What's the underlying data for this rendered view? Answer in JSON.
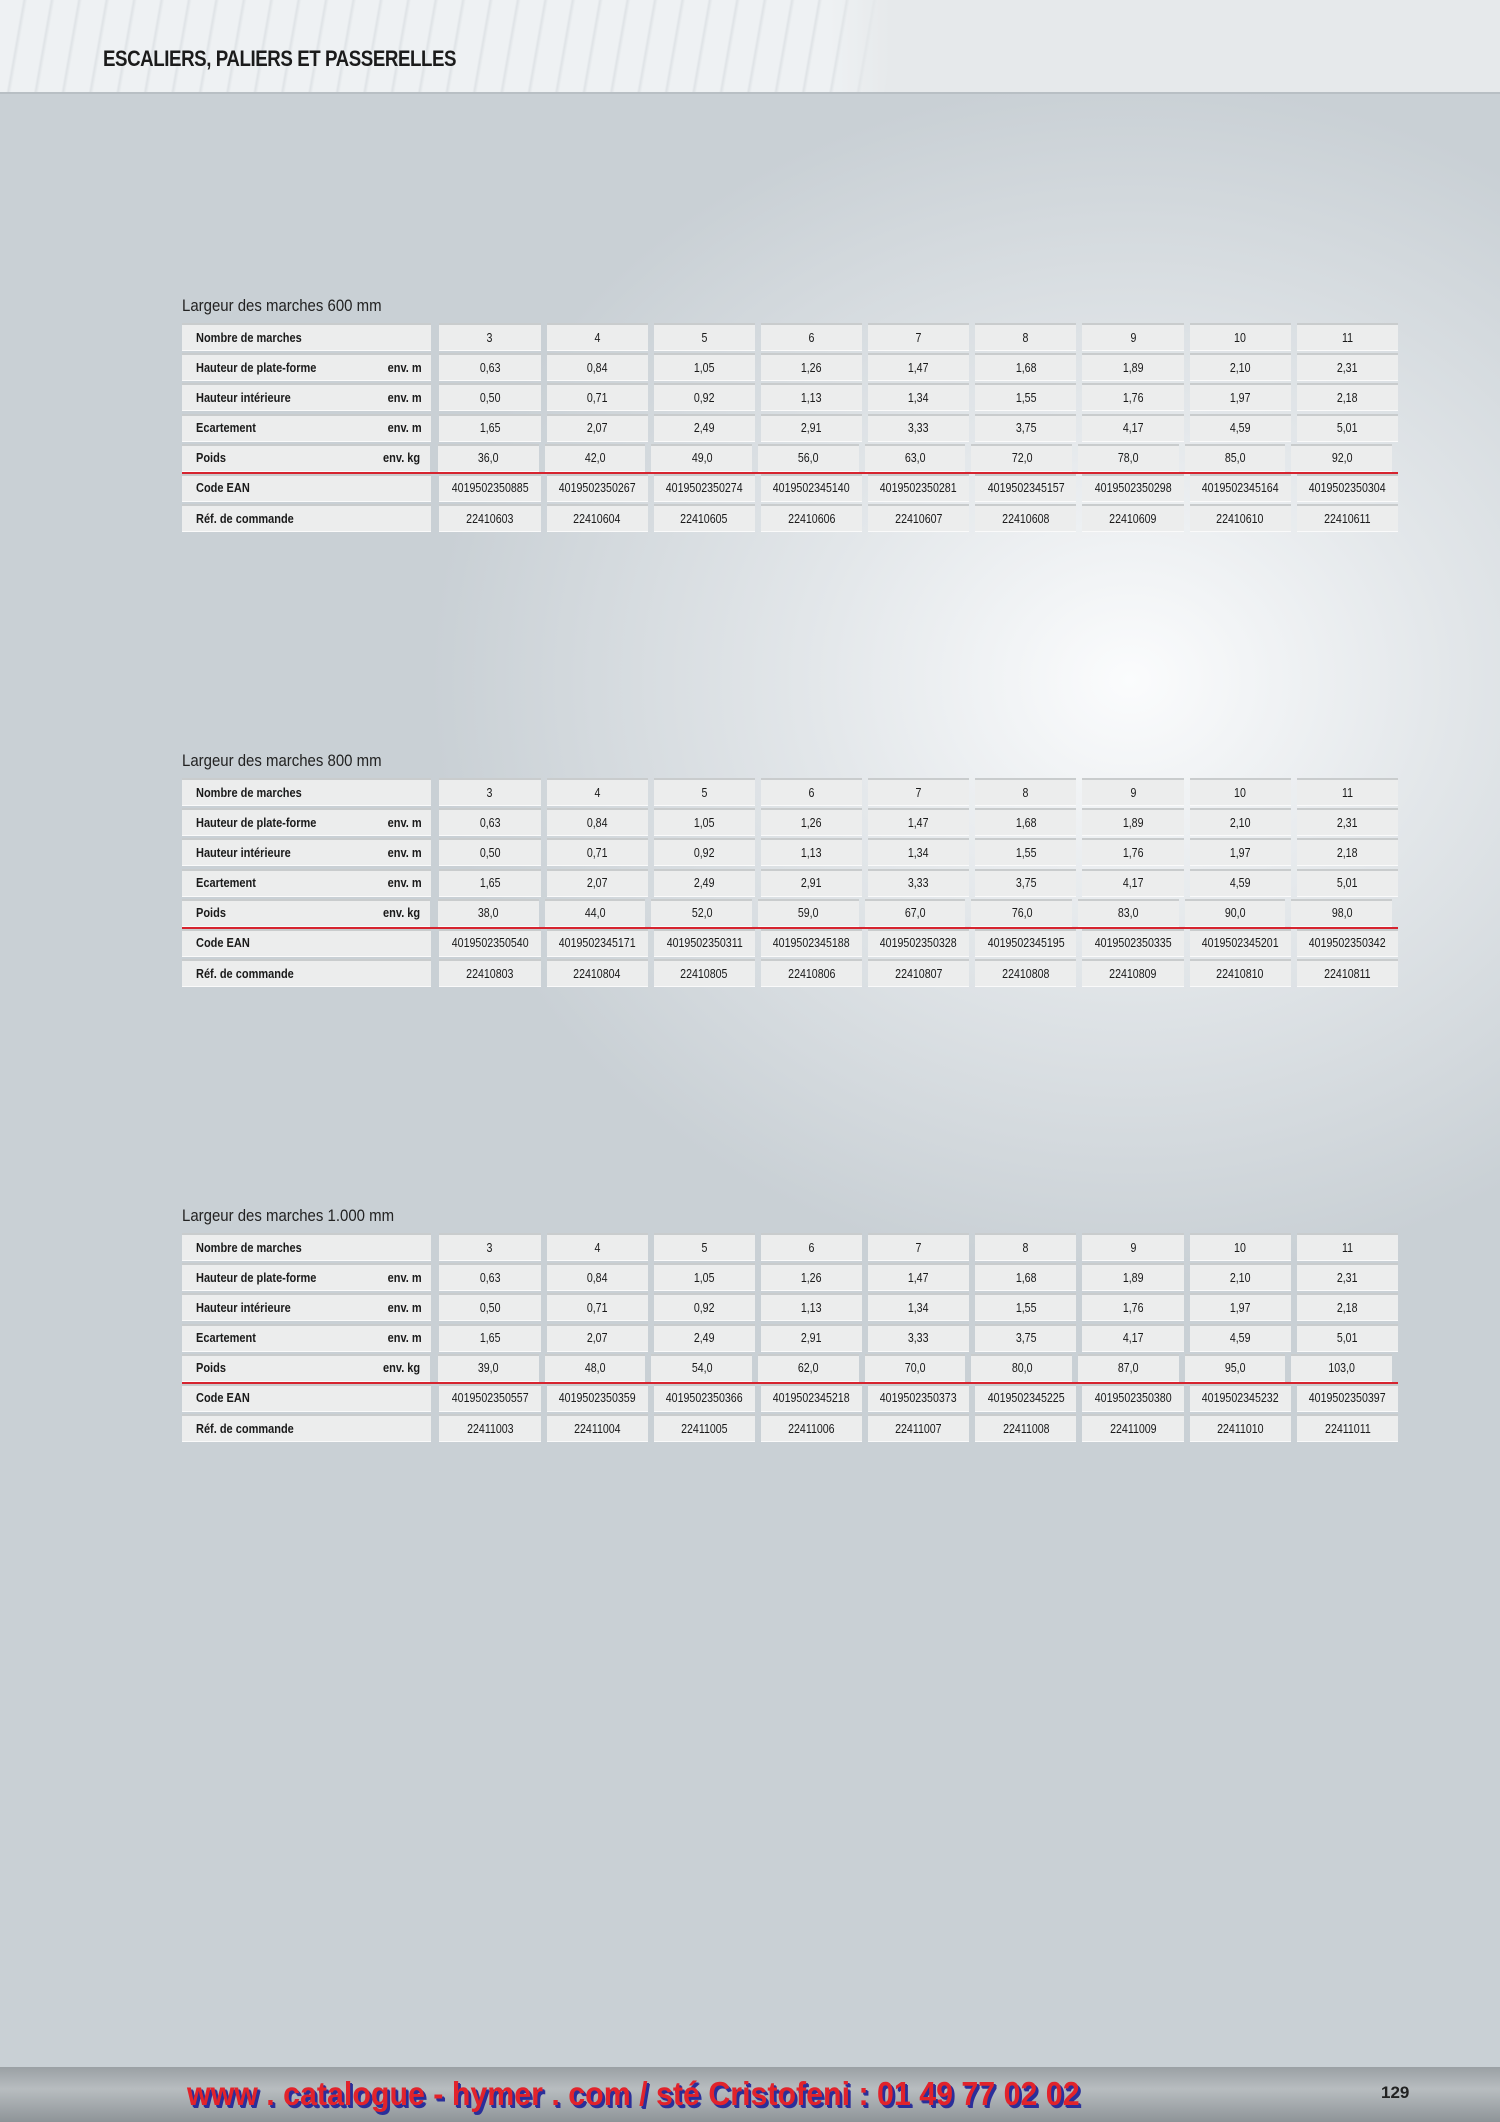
{
  "header": {
    "title": "ESCALIERS, PALIERS ET PASSERELLES"
  },
  "row_labels": [
    {
      "label": "Nombre de marches",
      "unit": ""
    },
    {
      "label": "Hauteur de plate-forme",
      "unit": "env. m"
    },
    {
      "label": "Hauteur intérieure",
      "unit": "env. m"
    },
    {
      "label": "Ecartement",
      "unit": "env. m"
    },
    {
      "label": "Poids",
      "unit": "env. kg"
    },
    {
      "label": "Code EAN",
      "unit": ""
    },
    {
      "label": "Réf. de commande",
      "unit": ""
    }
  ],
  "tables": [
    {
      "title": "Largeur des marches 600 mm",
      "rows": [
        [
          "3",
          "4",
          "5",
          "6",
          "7",
          "8",
          "9",
          "10",
          "11"
        ],
        [
          "0,63",
          "0,84",
          "1,05",
          "1,26",
          "1,47",
          "1,68",
          "1,89",
          "2,10",
          "2,31"
        ],
        [
          "0,50",
          "0,71",
          "0,92",
          "1,13",
          "1,34",
          "1,55",
          "1,76",
          "1,97",
          "2,18"
        ],
        [
          "1,65",
          "2,07",
          "2,49",
          "2,91",
          "3,33",
          "3,75",
          "4,17",
          "4,59",
          "5,01"
        ],
        [
          "36,0",
          "42,0",
          "49,0",
          "56,0",
          "63,0",
          "72,0",
          "78,0",
          "85,0",
          "92,0"
        ],
        [
          "4019502350885",
          "4019502350267",
          "4019502350274",
          "4019502345140",
          "4019502350281",
          "4019502345157",
          "4019502350298",
          "4019502345164",
          "4019502350304"
        ],
        [
          "22410603",
          "22410604",
          "22410605",
          "22410606",
          "22410607",
          "22410608",
          "22410609",
          "22410610",
          "22410611"
        ]
      ]
    },
    {
      "title": "Largeur des marches 800 mm",
      "rows": [
        [
          "3",
          "4",
          "5",
          "6",
          "7",
          "8",
          "9",
          "10",
          "11"
        ],
        [
          "0,63",
          "0,84",
          "1,05",
          "1,26",
          "1,47",
          "1,68",
          "1,89",
          "2,10",
          "2,31"
        ],
        [
          "0,50",
          "0,71",
          "0,92",
          "1,13",
          "1,34",
          "1,55",
          "1,76",
          "1,97",
          "2,18"
        ],
        [
          "1,65",
          "2,07",
          "2,49",
          "2,91",
          "3,33",
          "3,75",
          "4,17",
          "4,59",
          "5,01"
        ],
        [
          "38,0",
          "44,0",
          "52,0",
          "59,0",
          "67,0",
          "76,0",
          "83,0",
          "90,0",
          "98,0"
        ],
        [
          "4019502350540",
          "4019502345171",
          "4019502350311",
          "4019502345188",
          "4019502350328",
          "4019502345195",
          "4019502350335",
          "4019502345201",
          "4019502350342"
        ],
        [
          "22410803",
          "22410804",
          "22410805",
          "22410806",
          "22410807",
          "22410808",
          "22410809",
          "22410810",
          "22410811"
        ]
      ]
    },
    {
      "title": "Largeur des marches 1.000 mm",
      "rows": [
        [
          "3",
          "4",
          "5",
          "6",
          "7",
          "8",
          "9",
          "10",
          "11"
        ],
        [
          "0,63",
          "0,84",
          "1,05",
          "1,26",
          "1,47",
          "1,68",
          "1,89",
          "2,10",
          "2,31"
        ],
        [
          "0,50",
          "0,71",
          "0,92",
          "1,13",
          "1,34",
          "1,55",
          "1,76",
          "1,97",
          "2,18"
        ],
        [
          "1,65",
          "2,07",
          "2,49",
          "2,91",
          "3,33",
          "3,75",
          "4,17",
          "4,59",
          "5,01"
        ],
        [
          "39,0",
          "48,0",
          "54,0",
          "62,0",
          "70,0",
          "80,0",
          "87,0",
          "95,0",
          "103,0"
        ],
        [
          "4019502350557",
          "4019502350359",
          "4019502350366",
          "4019502345218",
          "4019502350373",
          "4019502345225",
          "4019502350380",
          "4019502345232",
          "4019502350397"
        ],
        [
          "22411003",
          "22411004",
          "22411005",
          "22411006",
          "22411007",
          "22411008",
          "22411009",
          "22411010",
          "22411011"
        ]
      ]
    }
  ],
  "footer": {
    "link_text": "www . catalogue - hymer . com / sté Cristofeni : 01 49 77 02 02",
    "page_number": "129"
  },
  "colors": {
    "accent_line": "#d6242f",
    "footer_text": "#e2232b",
    "footer_shadow": "#2a2f9a"
  }
}
